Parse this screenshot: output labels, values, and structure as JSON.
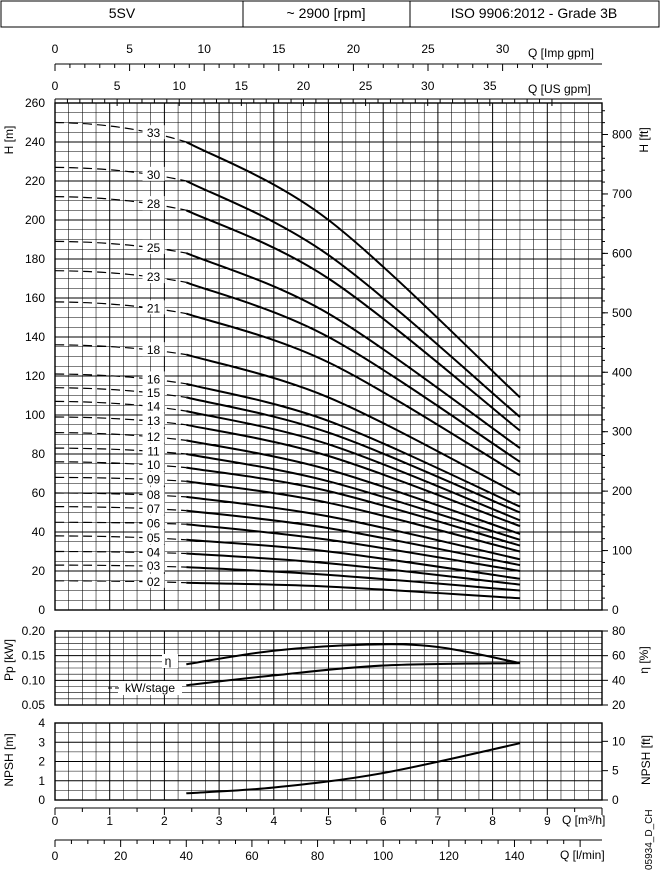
{
  "header": {
    "model": "5SV",
    "speed": "~ 2900 [rpm]",
    "standard": "ISO 9906:2012 - Grade 3B"
  },
  "code": "05934_D_CH",
  "axes": {
    "imp_gpm": {
      "label": "Q [Imp gpm]",
      "ticks": [
        "0",
        "5",
        "10",
        "15",
        "20",
        "25",
        "30"
      ]
    },
    "us_gpm": {
      "label": "Q [US gpm]",
      "ticks": [
        "0",
        "5",
        "10",
        "15",
        "20",
        "25",
        "30",
        "35"
      ]
    },
    "h_m": {
      "label": "H [m]",
      "ticks": [
        "0",
        "20",
        "40",
        "60",
        "80",
        "100",
        "120",
        "140",
        "160",
        "180",
        "200",
        "220",
        "240",
        "260"
      ]
    },
    "h_ft": {
      "label": "H [ft]",
      "ticks": [
        "0",
        "100",
        "200",
        "300",
        "400",
        "500",
        "600",
        "700",
        "800"
      ]
    },
    "pp": {
      "label": "Pp [kW]",
      "ticks": [
        "0.05",
        "0.10",
        "0.15",
        "0.20"
      ]
    },
    "eta": {
      "label": "η [%]",
      "ticks": [
        "20",
        "40",
        "60",
        "80"
      ]
    },
    "npsh_m": {
      "label": "NPSH [m]",
      "ticks": [
        "0",
        "1",
        "2",
        "3",
        "4"
      ]
    },
    "npsh_ft": {
      "label": "NPSH [ft]",
      "ticks": [
        "0",
        "5",
        "10"
      ]
    },
    "q_m3h": {
      "label": "Q [m³/h]",
      "ticks": [
        "0",
        "1",
        "2",
        "3",
        "4",
        "5",
        "6",
        "7",
        "8",
        "9"
      ]
    },
    "q_lmin": {
      "label": "Q [l/min]",
      "ticks": [
        "0",
        "20",
        "40",
        "60",
        "80",
        "100",
        "120",
        "140"
      ]
    }
  },
  "chart_data": [
    {
      "type": "line",
      "xlabel": "Q [m³/h]",
      "ylabel": "H [m]",
      "xlim": [
        0,
        10
      ],
      "ylim": [
        0,
        260
      ],
      "grid": true,
      "operating_range": [
        2.4,
        8.5
      ],
      "series": [
        {
          "name": "33",
          "x": [
            0,
            2.4,
            5,
            8.5
          ],
          "y": [
            250,
            240,
            200,
            109
          ]
        },
        {
          "name": "30",
          "x": [
            0,
            2.4,
            5,
            8.5
          ],
          "y": [
            227,
            220,
            182,
            99
          ]
        },
        {
          "name": "28",
          "x": [
            0,
            2.4,
            5,
            8.5
          ],
          "y": [
            212,
            205,
            170,
            92
          ]
        },
        {
          "name": "25",
          "x": [
            0,
            2.4,
            5,
            8.5
          ],
          "y": [
            189,
            183,
            152,
            83
          ]
        },
        {
          "name": "23",
          "x": [
            0,
            2.4,
            5,
            8.5
          ],
          "y": [
            174,
            168,
            140,
            76
          ]
        },
        {
          "name": "21",
          "x": [
            0,
            2.4,
            5,
            8.5
          ],
          "y": [
            158,
            152,
            127,
            69
          ]
        },
        {
          "name": "18",
          "x": [
            0,
            2.4,
            5,
            8.5
          ],
          "y": [
            136,
            131,
            109,
            59
          ]
        },
        {
          "name": "16",
          "x": [
            0,
            2.4,
            5,
            8.5
          ],
          "y": [
            121,
            116,
            97,
            53
          ]
        },
        {
          "name": "15",
          "x": [
            0,
            2.4,
            5,
            8.5
          ],
          "y": [
            114,
            109,
            91,
            50
          ]
        },
        {
          "name": "14",
          "x": [
            0,
            2.4,
            5,
            8.5
          ],
          "y": [
            107,
            102,
            85,
            46
          ]
        },
        {
          "name": "13",
          "x": [
            0,
            2.4,
            5,
            8.5
          ],
          "y": [
            99,
            95,
            79,
            43
          ]
        },
        {
          "name": "12",
          "x": [
            0,
            2.4,
            5,
            8.5
          ],
          "y": [
            91,
            87,
            72,
            39
          ]
        },
        {
          "name": "11",
          "x": [
            0,
            2.4,
            5,
            8.5
          ],
          "y": [
            83,
            80,
            66,
            36
          ]
        },
        {
          "name": "10",
          "x": [
            0,
            2.4,
            5,
            8.5
          ],
          "y": [
            76,
            73,
            61,
            33
          ]
        },
        {
          "name": "09",
          "x": [
            0,
            2.4,
            5,
            8.5
          ],
          "y": [
            68,
            66,
            55,
            30
          ]
        },
        {
          "name": "08",
          "x": [
            0,
            2.4,
            5,
            8.5
          ],
          "y": [
            60,
            58,
            48,
            26
          ]
        },
        {
          "name": "07",
          "x": [
            0,
            2.4,
            5,
            8.5
          ],
          "y": [
            53,
            51,
            42,
            23
          ]
        },
        {
          "name": "06",
          "x": [
            0,
            2.4,
            5,
            8.5
          ],
          "y": [
            45,
            44,
            36,
            20
          ]
        },
        {
          "name": "05",
          "x": [
            0,
            2.4,
            5,
            8.5
          ],
          "y": [
            38,
            36,
            30,
            16
          ]
        },
        {
          "name": "04",
          "x": [
            0,
            2.4,
            5,
            8.5
          ],
          "y": [
            30,
            29,
            24,
            13
          ]
        },
        {
          "name": "03",
          "x": [
            0,
            2.4,
            5,
            8.5
          ],
          "y": [
            23,
            22,
            18,
            10
          ]
        },
        {
          "name": "02",
          "x": [
            0,
            2.4,
            5,
            8.5
          ],
          "y": [
            15,
            14,
            12,
            6
          ]
        }
      ]
    },
    {
      "type": "line",
      "ylabel": "Pp [kW]",
      "xlim": [
        0,
        10
      ],
      "ylim": [
        0.05,
        0.2
      ],
      "grid": true,
      "series": [
        {
          "name": "kW/stage",
          "x": [
            2.4,
            4,
            6,
            8.5
          ],
          "y": [
            0.09,
            0.11,
            0.13,
            0.135
          ]
        }
      ]
    },
    {
      "type": "line",
      "ylabel": "η [%]",
      "xlim": [
        0,
        10
      ],
      "ylim": [
        20,
        80
      ],
      "grid": true,
      "series": [
        {
          "name": "η",
          "x": [
            2.4,
            4,
            5.7,
            7,
            8.5
          ],
          "y": [
            53,
            64,
            69,
            67,
            54
          ]
        }
      ]
    },
    {
      "type": "line",
      "xlabel": "Q [m³/h]",
      "ylabel": "NPSH [m]",
      "xlim": [
        0,
        10
      ],
      "ylim": [
        0,
        4
      ],
      "grid": true,
      "series": [
        {
          "name": "NPSH",
          "x": [
            2.4,
            4,
            6,
            8.5
          ],
          "y": [
            0.35,
            0.65,
            1.4,
            2.95
          ]
        }
      ]
    }
  ]
}
